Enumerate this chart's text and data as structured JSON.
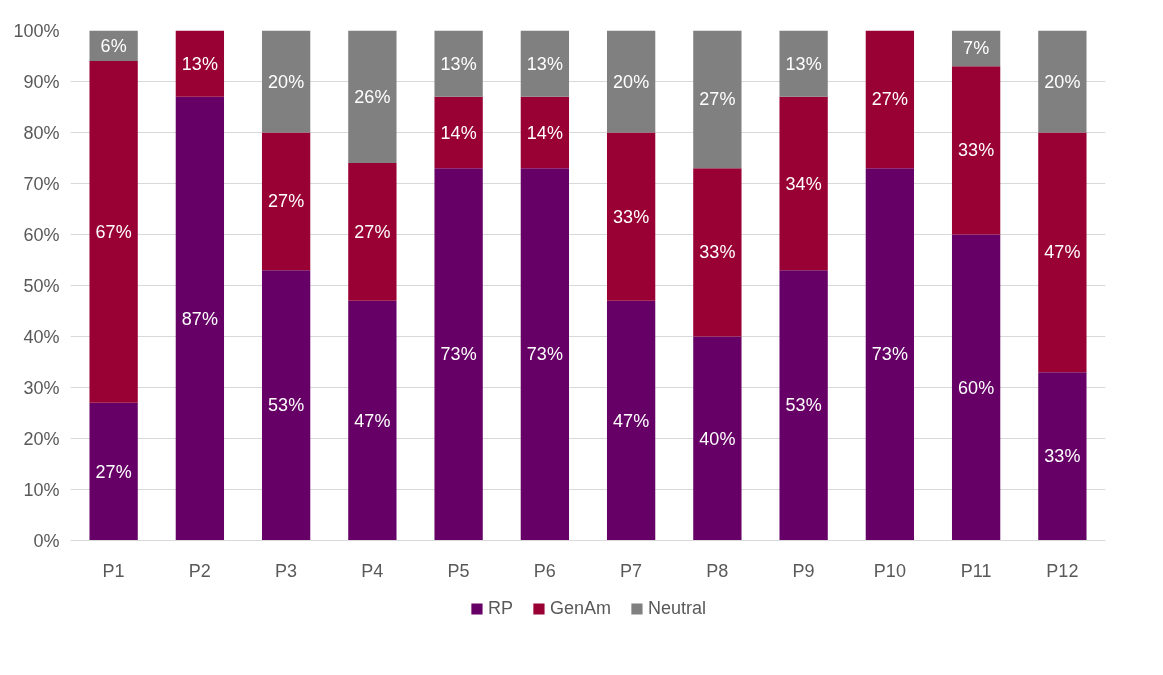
{
  "chart_data": {
    "type": "bar",
    "stacked": true,
    "categories": [
      "P1",
      "P2",
      "P3",
      "P4",
      "P5",
      "P6",
      "P7",
      "P8",
      "P9",
      "P10",
      "P11",
      "P12"
    ],
    "series": [
      {
        "name": "RP",
        "color": "#660066",
        "values": [
          27,
          87,
          53,
          47,
          73,
          73,
          47,
          40,
          53,
          73,
          60,
          33
        ],
        "value_labels": [
          "27%",
          "87%",
          "53%",
          "47%",
          "73%",
          "73%",
          "47%",
          "40%",
          "53%",
          "73%",
          "60%",
          "33%"
        ]
      },
      {
        "name": "GenAm",
        "color": "#990033",
        "values": [
          67,
          13,
          27,
          27,
          14,
          14,
          33,
          33,
          34,
          27,
          33,
          47
        ],
        "value_labels": [
          "67%",
          "13%",
          "27%",
          "27%",
          "14%",
          "14%",
          "33%",
          "33%",
          "34%",
          "27%",
          "33%",
          "47%"
        ]
      },
      {
        "name": "Neutral",
        "color": "#808080",
        "values": [
          6,
          null,
          20,
          26,
          13,
          13,
          20,
          27,
          13,
          null,
          7,
          20
        ],
        "value_labels": [
          "6%",
          null,
          "20%",
          "26%",
          "13%",
          "13%",
          "20%",
          "27%",
          "13%",
          null,
          "7%",
          "20%"
        ]
      }
    ],
    "ylim": [
      0,
      100
    ],
    "yticks": [
      {
        "value": 0,
        "label": "0%"
      },
      {
        "value": 10,
        "label": "10%"
      },
      {
        "value": 20,
        "label": "20%"
      },
      {
        "value": 30,
        "label": "30%"
      },
      {
        "value": 40,
        "label": "40%"
      },
      {
        "value": 50,
        "label": "50%"
      },
      {
        "value": 60,
        "label": "60%"
      },
      {
        "value": 70,
        "label": "70%"
      },
      {
        "value": 80,
        "label": "80%"
      },
      {
        "value": 90,
        "label": "90%"
      },
      {
        "value": 100,
        "label": "100%"
      }
    ],
    "grid": "y",
    "legend": "bottom"
  }
}
